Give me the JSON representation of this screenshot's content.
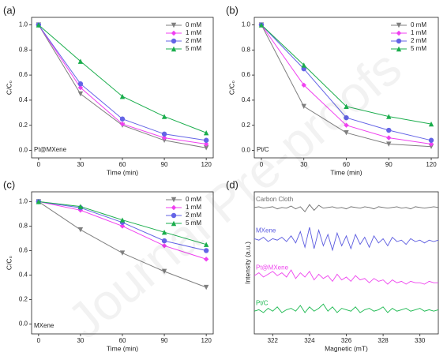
{
  "chart_data": [
    {
      "type": "line",
      "panel": "(a)",
      "annotation": "Pt@MXene",
      "xlabel": "Time (min)",
      "ylabel": "C/C₀",
      "x": [
        0,
        30,
        60,
        90,
        120
      ],
      "xlim": [
        -5,
        125
      ],
      "xticks": [
        0,
        30,
        60,
        90,
        120
      ],
      "ylim": [
        -0.06,
        1.06
      ],
      "yticks": [
        {
          "value": 0,
          "label": "0.0"
        },
        {
          "value": 0.2,
          "label": "0.2"
        },
        {
          "value": 0.4,
          "label": "0.4"
        },
        {
          "value": 0.6,
          "label": "0.6"
        },
        {
          "value": 0.8,
          "label": "0.8"
        },
        {
          "value": 1,
          "label": "1.0"
        }
      ],
      "series": [
        {
          "name": "0 mM",
          "color": "#7f7f7f",
          "marker": "v",
          "values": [
            1,
            0.45,
            0.2,
            0.08,
            0.02
          ]
        },
        {
          "name": "1 mM",
          "color": "#f040f0",
          "marker": "D",
          "values": [
            1,
            0.5,
            0.21,
            0.1,
            0.05
          ]
        },
        {
          "name": "2 mM",
          "color": "#6464e6",
          "marker": "o",
          "values": [
            1,
            0.53,
            0.25,
            0.13,
            0.08
          ]
        },
        {
          "name": "5 mM",
          "color": "#1aad4c",
          "marker": "^",
          "values": [
            1,
            0.71,
            0.43,
            0.27,
            0.14
          ]
        }
      ]
    },
    {
      "type": "line",
      "panel": "(b)",
      "annotation": "Pt/C",
      "xlabel": "Time (min)",
      "ylabel": "C/C₀",
      "x": [
        0,
        30,
        60,
        90,
        120
      ],
      "xlim": [
        -5,
        125
      ],
      "xticks": [
        0,
        30,
        60,
        90,
        120
      ],
      "ylim": [
        -0.06,
        1.06
      ],
      "yticks": [
        {
          "value": 0,
          "label": "0.0"
        },
        {
          "value": 0.2,
          "label": "0.2"
        },
        {
          "value": 0.4,
          "label": "0.4"
        },
        {
          "value": 0.6,
          "label": "0.6"
        },
        {
          "value": 0.8,
          "label": "0.8"
        },
        {
          "value": 1,
          "label": "1.0"
        }
      ],
      "series": [
        {
          "name": "0 mM",
          "color": "#7f7f7f",
          "marker": "v",
          "values": [
            1,
            0.35,
            0.14,
            0.05,
            0.03
          ]
        },
        {
          "name": "1 mM",
          "color": "#f040f0",
          "marker": "D",
          "values": [
            1,
            0.52,
            0.2,
            0.1,
            0.05
          ]
        },
        {
          "name": "2 mM",
          "color": "#6464e6",
          "marker": "o",
          "values": [
            1,
            0.65,
            0.26,
            0.16,
            0.08
          ]
        },
        {
          "name": "5 mM",
          "color": "#1aad4c",
          "marker": "^",
          "values": [
            1,
            0.68,
            0.35,
            0.27,
            0.21
          ]
        }
      ]
    },
    {
      "type": "line",
      "panel": "(c)",
      "annotation": "MXene",
      "xlabel": "Time (min)",
      "ylabel": "C/C₀",
      "x": [
        0,
        30,
        60,
        90,
        120
      ],
      "xlim": [
        -5,
        125
      ],
      "xticks": [
        0,
        30,
        60,
        90,
        120
      ],
      "ylim": [
        -0.08,
        1.08
      ],
      "yticks": [
        {
          "value": 0,
          "label": "0.0"
        },
        {
          "value": 0.2,
          "label": "0.2"
        },
        {
          "value": 0.4,
          "label": "0.4"
        },
        {
          "value": 0.6,
          "label": "0.6"
        },
        {
          "value": 0.8,
          "label": "0.8"
        },
        {
          "value": 1,
          "label": "1.0"
        }
      ],
      "series": [
        {
          "name": "0 mM",
          "color": "#7f7f7f",
          "marker": "v",
          "values": [
            1,
            0.77,
            0.58,
            0.43,
            0.3
          ]
        },
        {
          "name": "1 mM",
          "color": "#f040f0",
          "marker": "D",
          "values": [
            1,
            0.93,
            0.8,
            0.64,
            0.53
          ]
        },
        {
          "name": "2 mM",
          "color": "#6464e6",
          "marker": "o",
          "values": [
            1,
            0.95,
            0.83,
            0.68,
            0.6
          ]
        },
        {
          "name": "5 mM",
          "color": "#1aad4c",
          "marker": "^",
          "values": [
            1,
            0.96,
            0.85,
            0.75,
            0.65
          ]
        }
      ]
    },
    {
      "type": "spectrum",
      "panel": "(d)",
      "xlabel": "Magnetic (mT)",
      "ylabel": "Intensity (a.u.)",
      "x": [
        321,
        321.25,
        321.5,
        321.75,
        322,
        322.25,
        322.5,
        322.75,
        323,
        323.25,
        323.5,
        323.75,
        324,
        324.25,
        324.5,
        324.75,
        325,
        325.25,
        325.5,
        325.75,
        326,
        326.25,
        326.5,
        326.75,
        327,
        327.25,
        327.5,
        327.75,
        328,
        328.25,
        328.5,
        328.75,
        329,
        329.25,
        329.5,
        329.75,
        330,
        330.25,
        330.5,
        330.75,
        331
      ],
      "xlim": [
        321,
        331
      ],
      "xticks": [
        322,
        324,
        326,
        328,
        330
      ],
      "ylim": [
        0,
        10
      ],
      "series": [
        {
          "name": "Carbon Cloth",
          "color": "#6e6e6e",
          "values": [
            8.9,
            8.95,
            8.85,
            8.9,
            8.95,
            8.8,
            8.9,
            8.85,
            9.0,
            8.8,
            8.95,
            8.6,
            9.1,
            8.7,
            9.05,
            8.85,
            8.9,
            8.95,
            8.85,
            8.9,
            8.8,
            8.95,
            8.9,
            8.85,
            8.95,
            8.9,
            8.8,
            8.95,
            8.9,
            8.85,
            8.9,
            8.95,
            8.85,
            8.9,
            8.8,
            8.95,
            8.9,
            8.85,
            8.9,
            8.95,
            8.9
          ]
        },
        {
          "name": "MXene",
          "color": "#5c5ce0",
          "values": [
            6.7,
            6.6,
            6.8,
            6.5,
            6.7,
            6.6,
            6.8,
            6.5,
            6.9,
            6.4,
            7.2,
            6.1,
            7.5,
            6.0,
            7.3,
            6.2,
            7.0,
            5.9,
            7.1,
            6.2,
            6.9,
            6.0,
            7.0,
            6.3,
            6.8,
            6.1,
            6.9,
            6.4,
            6.7,
            6.2,
            6.8,
            6.5,
            6.6,
            6.3,
            6.7,
            6.5,
            6.6,
            6.4,
            6.6,
            6.5,
            6.6
          ]
        },
        {
          "name": "Pt@MXene",
          "color": "#ee44ee",
          "values": [
            4.1,
            4.3,
            4.0,
            4.2,
            4.4,
            4.1,
            4.3,
            4.0,
            4.5,
            3.9,
            4.3,
            4.0,
            4.4,
            3.8,
            4.2,
            3.9,
            4.1,
            3.7,
            4.2,
            3.8,
            4.0,
            3.7,
            4.1,
            3.8,
            3.9,
            3.6,
            3.9,
            3.7,
            3.8,
            3.5,
            3.8,
            3.6,
            3.7,
            3.5,
            3.7,
            3.6,
            3.6,
            3.5,
            3.7,
            3.6,
            3.6
          ]
        },
        {
          "name": "Pt/C",
          "color": "#19b84e",
          "values": [
            1.6,
            1.7,
            1.5,
            1.8,
            1.6,
            1.9,
            1.5,
            1.7,
            1.8,
            1.6,
            2.0,
            1.5,
            1.9,
            1.6,
            1.8,
            2.1,
            1.6,
            1.9,
            1.5,
            1.8,
            1.7,
            1.6,
            1.9,
            1.5,
            1.7,
            1.8,
            1.6,
            1.7,
            1.9,
            1.5,
            1.8,
            1.6,
            1.7,
            1.8,
            1.6,
            1.7,
            1.8,
            1.6,
            1.7,
            1.6,
            1.7
          ]
        }
      ]
    }
  ],
  "watermark": "Journal Pre-proofs"
}
